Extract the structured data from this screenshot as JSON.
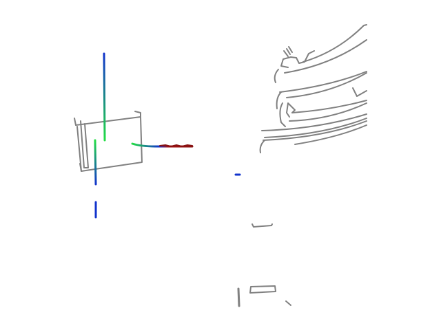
{
  "colors": {
    "background": "#ffffff",
    "map_lines": "#808080",
    "track_green": "#22dd44",
    "track_blue": "#1133cc",
    "track_red": "#aa1111"
  }
}
